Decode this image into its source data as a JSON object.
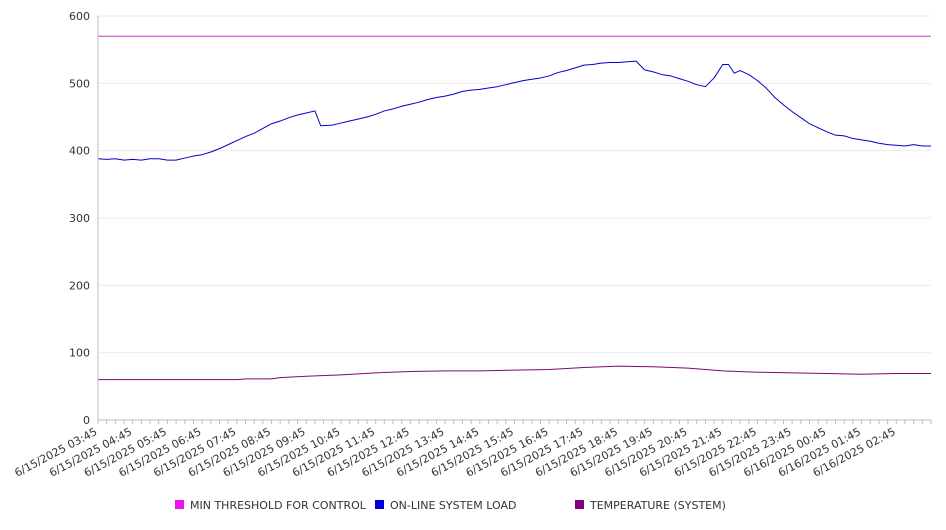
{
  "chart_data": {
    "type": "line",
    "y_axis": {
      "ticks": [
        0,
        100,
        200,
        300,
        400,
        500,
        600
      ],
      "ylim": [
        0,
        600
      ],
      "tick_labels": [
        "0",
        "100",
        "200",
        "300",
        "400",
        "500",
        "600"
      ]
    },
    "x_axis": {
      "type": "time",
      "range": [
        "6/15/2025 03:45",
        "6/16/2025 03:45"
      ],
      "tick_labels": [
        "6/15/2025 03:45",
        "6/15/2025 04:45",
        "6/15/2025 05:45",
        "6/15/2025 06:45",
        "6/15/2025 07:45",
        "6/15/2025 08:45",
        "6/15/2025 09:45",
        "6/15/2025 10:45",
        "6/15/2025 11:45",
        "6/15/2025 12:45",
        "6/15/2025 13:45",
        "6/15/2025 14:45",
        "6/15/2025 15:45",
        "6/15/2025 16:45",
        "6/15/2025 17:45",
        "6/15/2025 18:45",
        "6/15/2025 19:45",
        "6/15/2025 20:45",
        "6/15/2025 21:45",
        "6/15/2025 22:45",
        "6/15/2025 23:45",
        "6/16/2025 00:45",
        "6/16/2025 01:45",
        "6/16/2025 02:45"
      ]
    },
    "grid": true,
    "legend_position": "bottom",
    "series": [
      {
        "name": "MIN THRESHOLD FOR CONTROL",
        "color": "#cc33cc",
        "legend_color": "#ee11ee",
        "points": [
          {
            "x": "6/15/2025 03:45",
            "y": 570
          },
          {
            "x": "6/16/2025 03:45",
            "y": 570
          }
        ]
      },
      {
        "name": "ON-LINE SYSTEM LOAD",
        "color": "#0000cc",
        "legend_color": "#0000dd",
        "points": [
          {
            "x": "6/15/2025 03:45",
            "y": 388
          },
          {
            "x": "6/15/2025 04:00",
            "y": 387
          },
          {
            "x": "6/15/2025 04:15",
            "y": 388
          },
          {
            "x": "6/15/2025 04:30",
            "y": 386
          },
          {
            "x": "6/15/2025 04:45",
            "y": 387
          },
          {
            "x": "6/15/2025 05:00",
            "y": 386
          },
          {
            "x": "6/15/2025 05:15",
            "y": 388
          },
          {
            "x": "6/15/2025 05:30",
            "y": 388
          },
          {
            "x": "6/15/2025 05:45",
            "y": 386
          },
          {
            "x": "6/15/2025 06:00",
            "y": 386
          },
          {
            "x": "6/15/2025 06:15",
            "y": 389
          },
          {
            "x": "6/15/2025 06:30",
            "y": 392
          },
          {
            "x": "6/15/2025 06:45",
            "y": 394
          },
          {
            "x": "6/15/2025 07:00",
            "y": 398
          },
          {
            "x": "6/15/2025 07:15",
            "y": 403
          },
          {
            "x": "6/15/2025 07:30",
            "y": 409
          },
          {
            "x": "6/15/2025 07:45",
            "y": 415
          },
          {
            "x": "6/15/2025 08:00",
            "y": 421
          },
          {
            "x": "6/15/2025 08:15",
            "y": 426
          },
          {
            "x": "6/15/2025 08:30",
            "y": 433
          },
          {
            "x": "6/15/2025 08:45",
            "y": 440
          },
          {
            "x": "6/15/2025 09:00",
            "y": 444
          },
          {
            "x": "6/15/2025 09:15",
            "y": 449
          },
          {
            "x": "6/15/2025 09:30",
            "y": 453
          },
          {
            "x": "6/15/2025 09:45",
            "y": 456
          },
          {
            "x": "6/15/2025 10:00",
            "y": 459
          },
          {
            "x": "6/15/2025 10:10",
            "y": 437
          },
          {
            "x": "6/15/2025 10:30",
            "y": 438
          },
          {
            "x": "6/15/2025 10:45",
            "y": 441
          },
          {
            "x": "6/15/2025 11:00",
            "y": 444
          },
          {
            "x": "6/15/2025 11:15",
            "y": 447
          },
          {
            "x": "6/15/2025 11:30",
            "y": 450
          },
          {
            "x": "6/15/2025 11:45",
            "y": 454
          },
          {
            "x": "6/15/2025 12:00",
            "y": 459
          },
          {
            "x": "6/15/2025 12:15",
            "y": 462
          },
          {
            "x": "6/15/2025 12:30",
            "y": 466
          },
          {
            "x": "6/15/2025 12:45",
            "y": 469
          },
          {
            "x": "6/15/2025 13:00",
            "y": 472
          },
          {
            "x": "6/15/2025 13:15",
            "y": 476
          },
          {
            "x": "6/15/2025 13:30",
            "y": 479
          },
          {
            "x": "6/15/2025 13:45",
            "y": 481
          },
          {
            "x": "6/15/2025 14:00",
            "y": 484
          },
          {
            "x": "6/15/2025 14:15",
            "y": 488
          },
          {
            "x": "6/15/2025 14:30",
            "y": 490
          },
          {
            "x": "6/15/2025 14:45",
            "y": 491
          },
          {
            "x": "6/15/2025 15:00",
            "y": 493
          },
          {
            "x": "6/15/2025 15:15",
            "y": 495
          },
          {
            "x": "6/15/2025 15:30",
            "y": 498
          },
          {
            "x": "6/15/2025 15:45",
            "y": 501
          },
          {
            "x": "6/15/2025 16:00",
            "y": 504
          },
          {
            "x": "6/15/2025 16:15",
            "y": 506
          },
          {
            "x": "6/15/2025 16:30",
            "y": 508
          },
          {
            "x": "6/15/2025 16:45",
            "y": 511
          },
          {
            "x": "6/15/2025 17:00",
            "y": 516
          },
          {
            "x": "6/15/2025 17:15",
            "y": 519
          },
          {
            "x": "6/15/2025 17:30",
            "y": 523
          },
          {
            "x": "6/15/2025 17:45",
            "y": 527
          },
          {
            "x": "6/15/2025 18:00",
            "y": 528
          },
          {
            "x": "6/15/2025 18:15",
            "y": 530
          },
          {
            "x": "6/15/2025 18:30",
            "y": 531
          },
          {
            "x": "6/15/2025 18:45",
            "y": 531
          },
          {
            "x": "6/15/2025 19:00",
            "y": 532
          },
          {
            "x": "6/15/2025 19:15",
            "y": 533
          },
          {
            "x": "6/15/2025 19:30",
            "y": 520
          },
          {
            "x": "6/15/2025 19:45",
            "y": 517
          },
          {
            "x": "6/15/2025 20:00",
            "y": 513
          },
          {
            "x": "6/15/2025 20:15",
            "y": 511
          },
          {
            "x": "6/15/2025 20:30",
            "y": 507
          },
          {
            "x": "6/15/2025 20:45",
            "y": 503
          },
          {
            "x": "6/15/2025 21:00",
            "y": 498
          },
          {
            "x": "6/15/2025 21:15",
            "y": 495
          },
          {
            "x": "6/15/2025 21:30",
            "y": 508
          },
          {
            "x": "6/15/2025 21:45",
            "y": 528
          },
          {
            "x": "6/15/2025 21:55",
            "y": 528
          },
          {
            "x": "6/15/2025 22:05",
            "y": 515
          },
          {
            "x": "6/15/2025 22:15",
            "y": 519
          },
          {
            "x": "6/15/2025 22:30",
            "y": 513
          },
          {
            "x": "6/15/2025 22:45",
            "y": 504
          },
          {
            "x": "6/15/2025 23:00",
            "y": 493
          },
          {
            "x": "6/15/2025 23:15",
            "y": 479
          },
          {
            "x": "6/15/2025 23:30",
            "y": 468
          },
          {
            "x": "6/15/2025 23:45",
            "y": 458
          },
          {
            "x": "6/16/2025 00:00",
            "y": 449
          },
          {
            "x": "6/16/2025 00:15",
            "y": 440
          },
          {
            "x": "6/16/2025 00:30",
            "y": 434
          },
          {
            "x": "6/16/2025 00:45",
            "y": 428
          },
          {
            "x": "6/16/2025 01:00",
            "y": 423
          },
          {
            "x": "6/16/2025 01:15",
            "y": 422
          },
          {
            "x": "6/16/2025 01:30",
            "y": 418
          },
          {
            "x": "6/16/2025 01:45",
            "y": 416
          },
          {
            "x": "6/16/2025 02:00",
            "y": 414
          },
          {
            "x": "6/16/2025 02:15",
            "y": 411
          },
          {
            "x": "6/16/2025 02:30",
            "y": 409
          },
          {
            "x": "6/16/2025 02:45",
            "y": 408
          },
          {
            "x": "6/16/2025 03:00",
            "y": 407
          },
          {
            "x": "6/16/2025 03:15",
            "y": 409
          },
          {
            "x": "6/16/2025 03:30",
            "y": 407
          },
          {
            "x": "6/16/2025 03:45",
            "y": 407
          }
        ]
      },
      {
        "name": "TEMPERATURE (SYSTEM)",
        "color": "#7a0a7a",
        "legend_color": "#800080",
        "points": [
          {
            "x": "6/15/2025 03:45",
            "y": 60
          },
          {
            "x": "6/15/2025 05:45",
            "y": 60
          },
          {
            "x": "6/15/2025 07:45",
            "y": 60
          },
          {
            "x": "6/15/2025 08:00",
            "y": 61
          },
          {
            "x": "6/15/2025 08:45",
            "y": 61
          },
          {
            "x": "6/15/2025 09:00",
            "y": 63
          },
          {
            "x": "6/15/2025 09:45",
            "y": 65
          },
          {
            "x": "6/15/2025 10:45",
            "y": 67
          },
          {
            "x": "6/15/2025 11:45",
            "y": 70
          },
          {
            "x": "6/15/2025 12:45",
            "y": 72
          },
          {
            "x": "6/15/2025 13:45",
            "y": 73
          },
          {
            "x": "6/15/2025 14:45",
            "y": 73
          },
          {
            "x": "6/15/2025 15:45",
            "y": 74
          },
          {
            "x": "6/15/2025 16:45",
            "y": 75
          },
          {
            "x": "6/15/2025 17:45",
            "y": 78
          },
          {
            "x": "6/15/2025 18:45",
            "y": 80
          },
          {
            "x": "6/15/2025 19:45",
            "y": 79
          },
          {
            "x": "6/15/2025 20:45",
            "y": 77
          },
          {
            "x": "6/15/2025 21:45",
            "y": 73
          },
          {
            "x": "6/15/2025 22:45",
            "y": 71
          },
          {
            "x": "6/15/2025 23:45",
            "y": 70
          },
          {
            "x": "6/16/2025 00:45",
            "y": 69
          },
          {
            "x": "6/16/2025 01:45",
            "y": 68
          },
          {
            "x": "6/16/2025 02:45",
            "y": 69
          },
          {
            "x": "6/16/2025 03:45",
            "y": 69
          }
        ]
      }
    ]
  }
}
